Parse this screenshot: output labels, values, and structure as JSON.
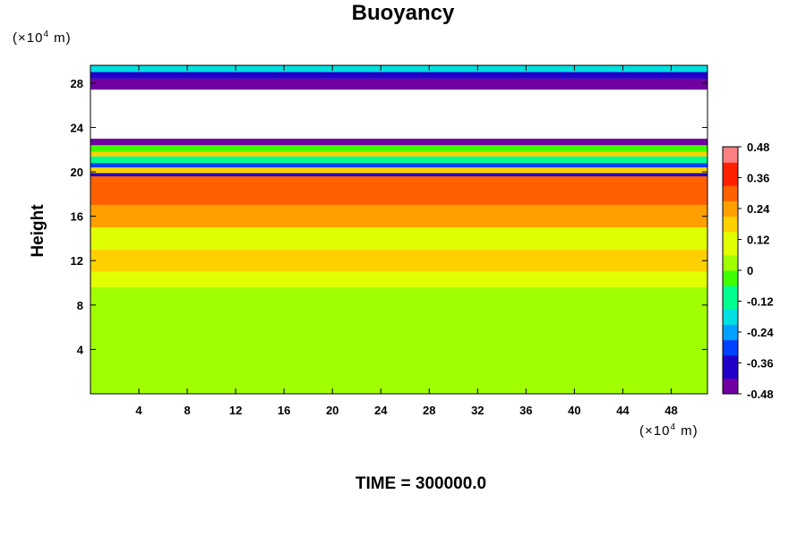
{
  "chart_data": {
    "type": "heatmap",
    "title": "Buoyancy",
    "ylabel": "Height",
    "xlabel": "",
    "x_unit_prefix": "(×10",
    "x_unit_exp": "4",
    "x_unit_suffix": " m)",
    "y_unit_prefix": "(×10",
    "y_unit_exp": "4",
    "y_unit_suffix": " m)",
    "xlim": [
      0,
      51
    ],
    "ylim": [
      0,
      29.6
    ],
    "x_ticks": [
      4,
      8,
      12,
      16,
      20,
      24,
      28,
      32,
      36,
      40,
      44,
      48
    ],
    "x_tick_labels": [
      "4",
      "8",
      "12",
      "16",
      "20",
      "24",
      "28",
      "32",
      "36",
      "40",
      "44",
      "48"
    ],
    "y_ticks": [
      4,
      8,
      12,
      16,
      20,
      24,
      28
    ],
    "y_tick_labels": [
      "4",
      "8",
      "12",
      "16",
      "20",
      "24",
      "28"
    ],
    "colorbar": {
      "range": [
        -0.48,
        0.48
      ],
      "tick_values": [
        0.48,
        0.36,
        0.24,
        0.12,
        0,
        -0.12,
        -0.24,
        -0.36,
        -0.48
      ],
      "tick_labels": [
        "0.48",
        "0.36",
        "0.24",
        "0.12",
        "0",
        "-0.12",
        "-0.24",
        "-0.36",
        "-0.48"
      ],
      "colors_low_to_high": [
        "#7000a0",
        "#2000c8",
        "#0040ff",
        "#00a0ff",
        "#00e0e0",
        "#00ff90",
        "#40ff00",
        "#a0ff00",
        "#e0ff00",
        "#ffd000",
        "#ffa000",
        "#ff6000",
        "#ff2000",
        "#ff8080"
      ]
    },
    "bands": [
      {
        "y_from": 0,
        "y_to": 9.6,
        "value": 0.0
      },
      {
        "y_from": 9.6,
        "y_to": 11.0,
        "value": 0.1
      },
      {
        "y_from": 11.0,
        "y_to": 13.0,
        "value": 0.16
      },
      {
        "y_from": 13.0,
        "y_to": 15.0,
        "value": 0.13
      },
      {
        "y_from": 15.0,
        "y_to": 17.0,
        "value": 0.22
      },
      {
        "y_from": 17.0,
        "y_to": 19.6,
        "value": 0.28
      },
      {
        "y_from": 19.6,
        "y_to": 19.9,
        "value": -0.36
      },
      {
        "y_from": 19.9,
        "y_to": 20.4,
        "value": 0.2
      },
      {
        "y_from": 20.4,
        "y_to": 20.8,
        "value": -0.3
      },
      {
        "y_from": 20.8,
        "y_to": 21.4,
        "value": -0.1
      },
      {
        "y_from": 21.4,
        "y_to": 21.8,
        "value": 0.2
      },
      {
        "y_from": 21.8,
        "y_to": 22.4,
        "value": -0.05
      },
      {
        "y_from": 22.4,
        "y_to": 23.0,
        "value": -0.42
      },
      {
        "y_from": 27.4,
        "y_to": 28.4,
        "value": -0.45
      },
      {
        "y_from": 28.4,
        "y_to": 29.0,
        "value": -0.36
      },
      {
        "y_from": 29.0,
        "y_to": 29.6,
        "value": -0.15
      }
    ],
    "blank_region": {
      "y_from": 23.0,
      "y_to": 27.4
    }
  },
  "footer": {
    "time_label": "TIME = 300000.0"
  }
}
